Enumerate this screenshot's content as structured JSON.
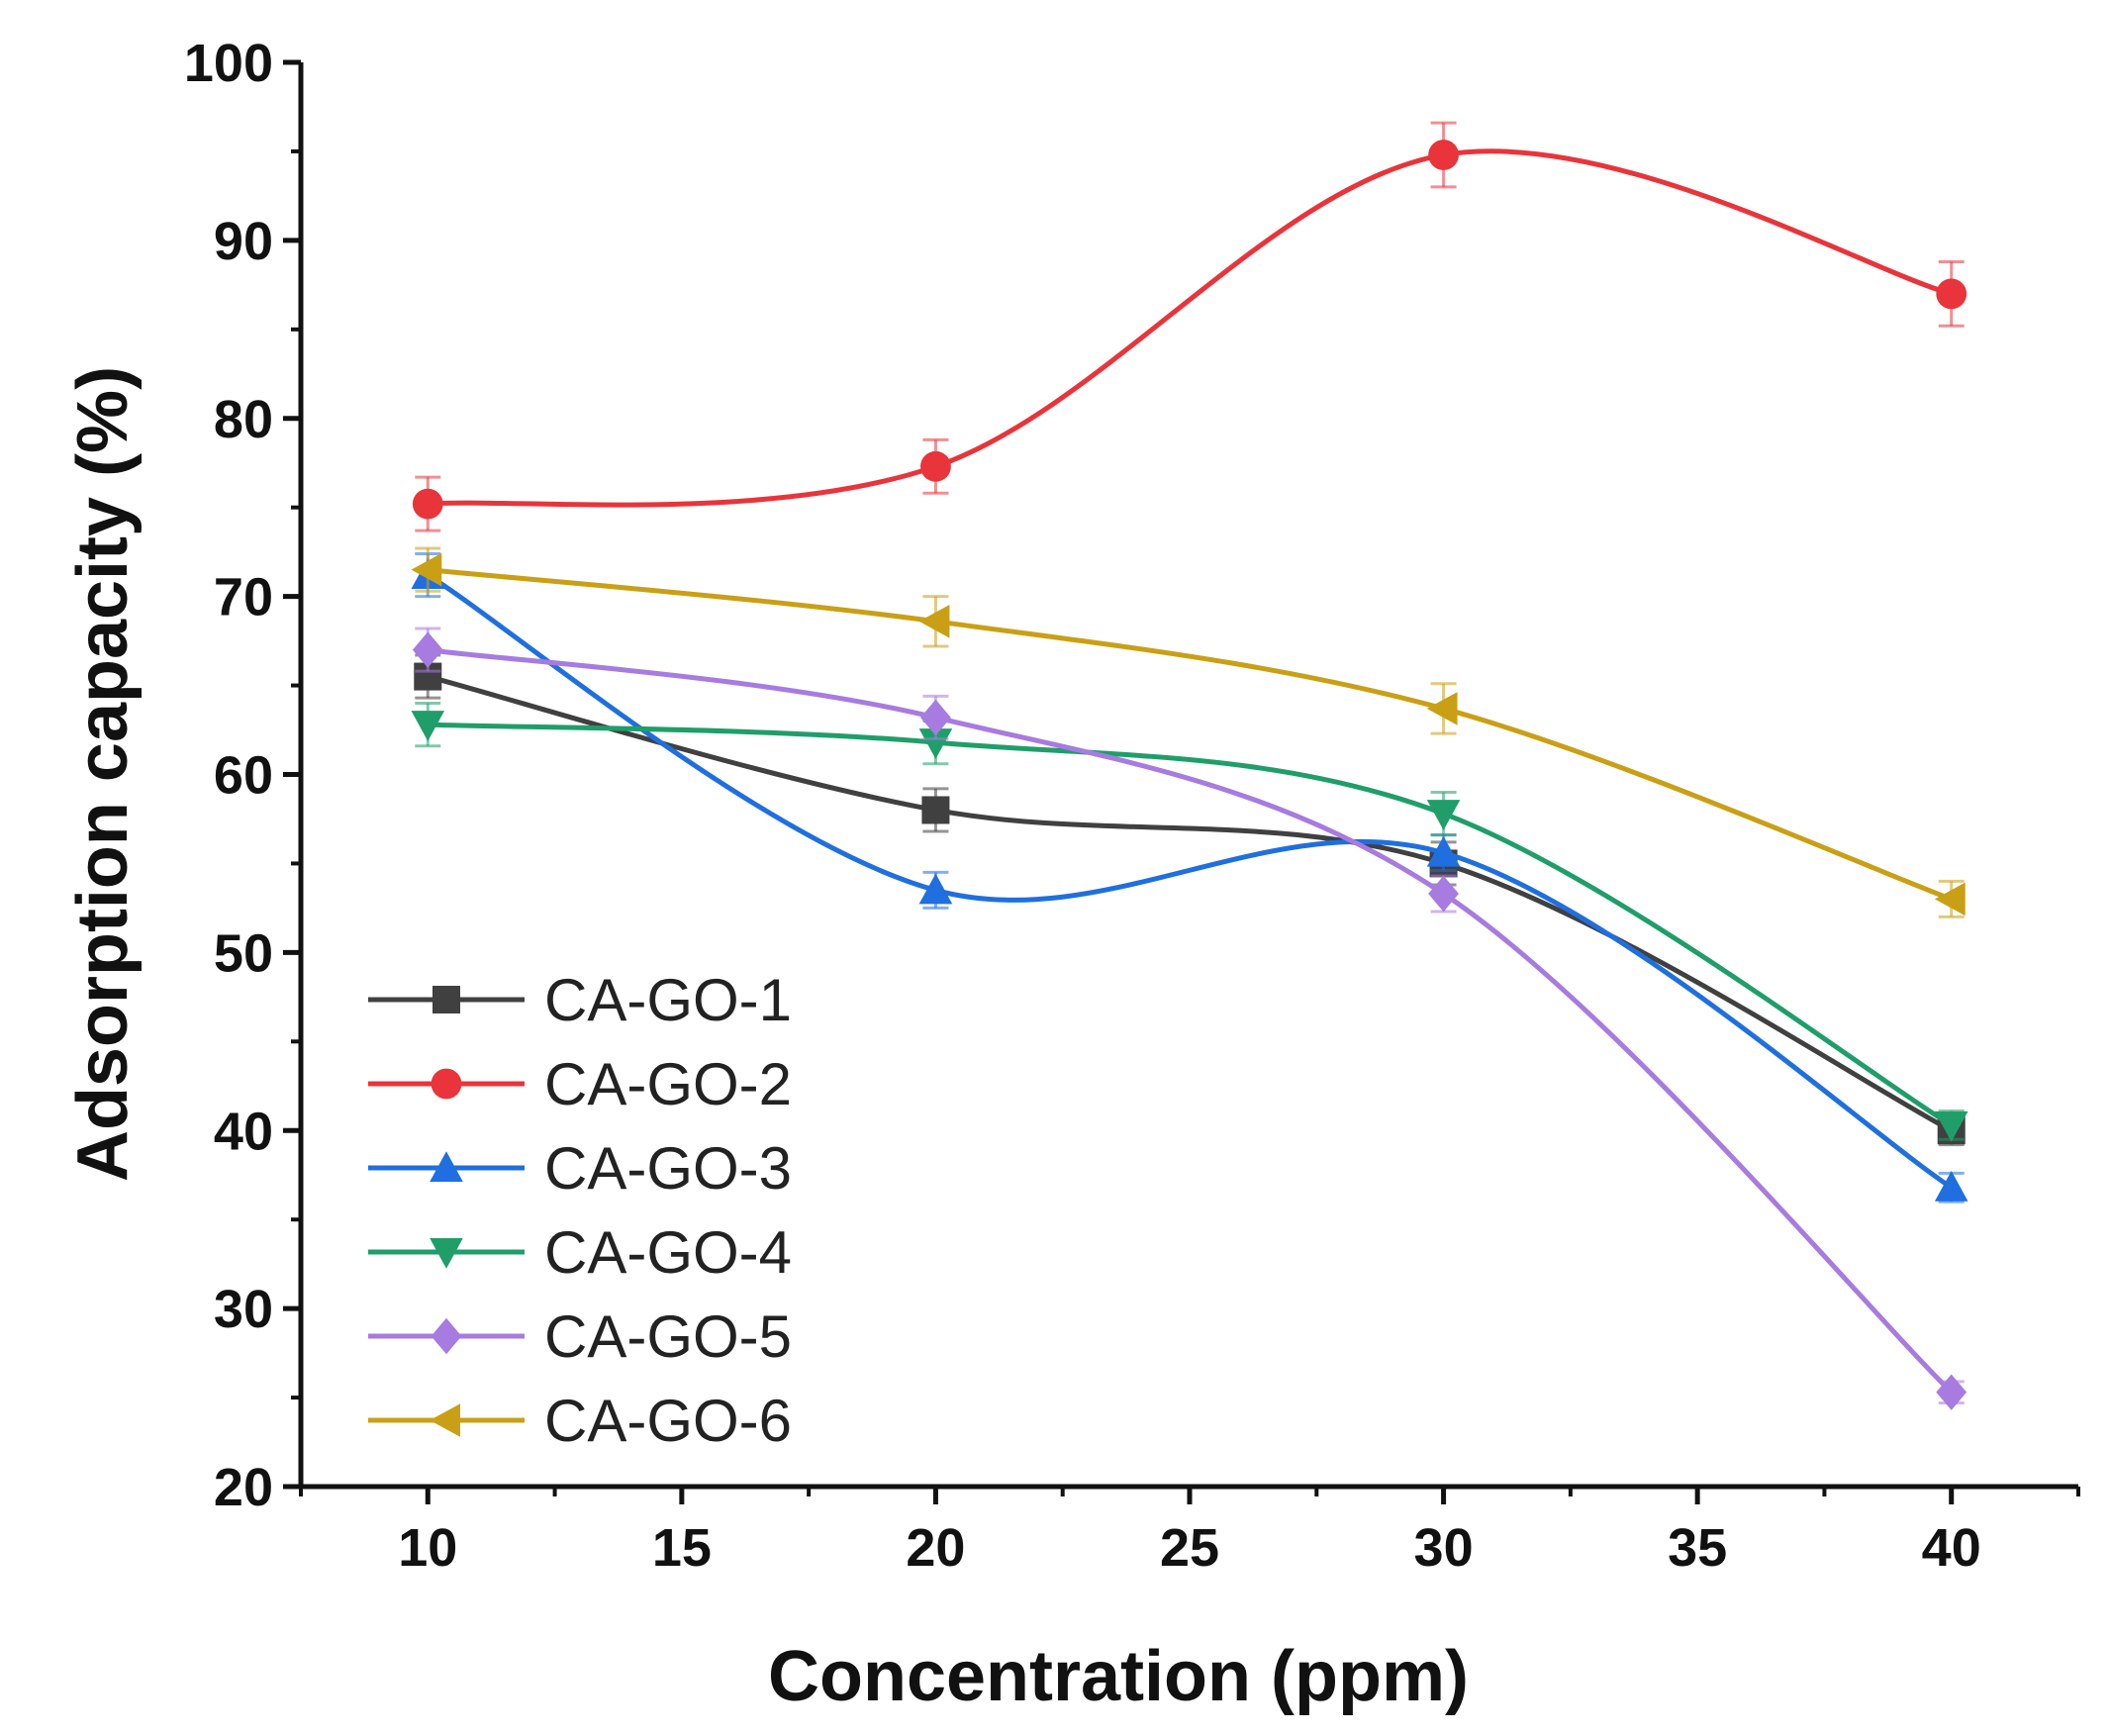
{
  "chart_data": {
    "type": "line",
    "title": "",
    "xlabel": "Concentration (ppm)",
    "ylabel": "Adsorption capacity (%)",
    "xlim": [
      7.5,
      42.5
    ],
    "ylim": [
      20,
      100
    ],
    "x_ticks": [
      10,
      15,
      20,
      25,
      30,
      35,
      40
    ],
    "y_ticks": [
      20,
      30,
      40,
      50,
      60,
      70,
      80,
      90,
      100
    ],
    "grid": false,
    "legend_position": "lower-left",
    "x": [
      10,
      20,
      30,
      40
    ],
    "series": [
      {
        "name": "CA-GO-1",
        "color": "#404040",
        "marker": "square",
        "values": [
          65.5,
          58.0,
          55.0,
          40.0
        ],
        "errors": [
          1.2,
          1.2,
          1.2,
          0.8
        ]
      },
      {
        "name": "CA-GO-2",
        "color": "#e8343a",
        "marker": "circle",
        "values": [
          75.2,
          77.3,
          94.8,
          87.0
        ],
        "errors": [
          1.5,
          1.5,
          1.8,
          1.8
        ]
      },
      {
        "name": "CA-GO-3",
        "color": "#1f6fe0",
        "marker": "triangle-up",
        "values": [
          71.2,
          53.5,
          55.6,
          36.8
        ],
        "errors": [
          1.2,
          1.0,
          1.0,
          0.8
        ]
      },
      {
        "name": "CA-GO-4",
        "color": "#1f9e6a",
        "marker": "triangle-down",
        "values": [
          62.8,
          61.8,
          57.8,
          40.3
        ],
        "errors": [
          1.2,
          1.2,
          1.2,
          0.8
        ]
      },
      {
        "name": "CA-GO-5",
        "color": "#a77be0",
        "marker": "diamond",
        "values": [
          67.0,
          63.2,
          53.3,
          25.3
        ],
        "errors": [
          1.2,
          1.2,
          1.0,
          0.6
        ]
      },
      {
        "name": "CA-GO-6",
        "color": "#c9a015",
        "marker": "triangle-left",
        "values": [
          71.5,
          68.6,
          63.7,
          53.0
        ],
        "errors": [
          1.2,
          1.4,
          1.4,
          1.0
        ]
      }
    ]
  }
}
